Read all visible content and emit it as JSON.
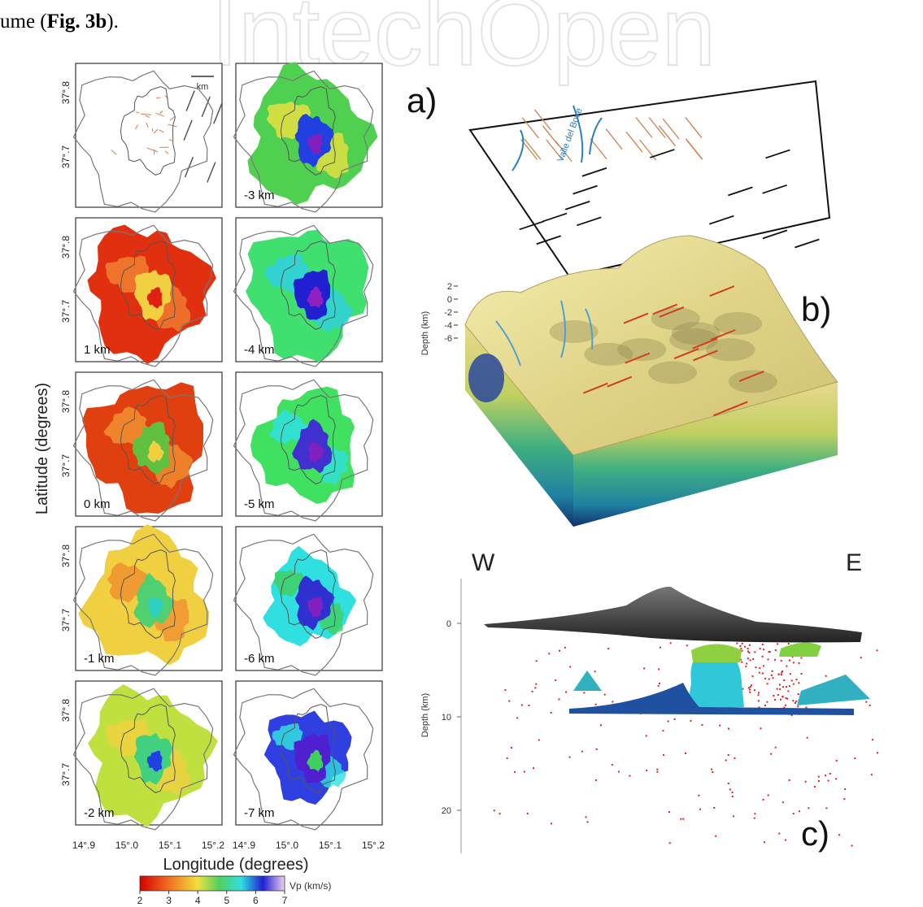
{
  "intro": {
    "before": "ume (",
    "bold": "Fig. 3b",
    "after": ")."
  },
  "watermark": "IntechOpen",
  "maps": {
    "panels": [
      {
        "scale": "km"
      },
      {
        "depth": "-3 km"
      },
      {
        "depth": "1 km"
      },
      {
        "depth": "-4 km"
      },
      {
        "depth": "0 km"
      },
      {
        "depth": "-5 km"
      },
      {
        "depth": "-1 km"
      },
      {
        "depth": "-6 km"
      },
      {
        "depth": "-2 km"
      },
      {
        "depth": "-7 km"
      }
    ],
    "lat_ticks": [
      "37°.8",
      "37°.7"
    ],
    "lon_ticks": [
      "14°.9",
      "15°.0",
      "15°.1",
      "15°.2"
    ],
    "y_label": "Latitude (degrees)",
    "x_label": "Longitude (degrees)",
    "colorbar": {
      "ticks": [
        2,
        3,
        4,
        5,
        6,
        7
      ],
      "label": "Vp (km/s)"
    }
  },
  "panel_a": {
    "label": "a)",
    "text": "Valle del Bove"
  },
  "panel_b": {
    "label": "b)",
    "axis_label": "Depth (km)",
    "ticks": [
      2,
      0,
      -2,
      -4,
      -6
    ]
  },
  "panel_c": {
    "label": "c)",
    "west": "W",
    "east": "E",
    "axis_label": "Depth (km)",
    "ticks": [
      0,
      10,
      20
    ]
  }
}
